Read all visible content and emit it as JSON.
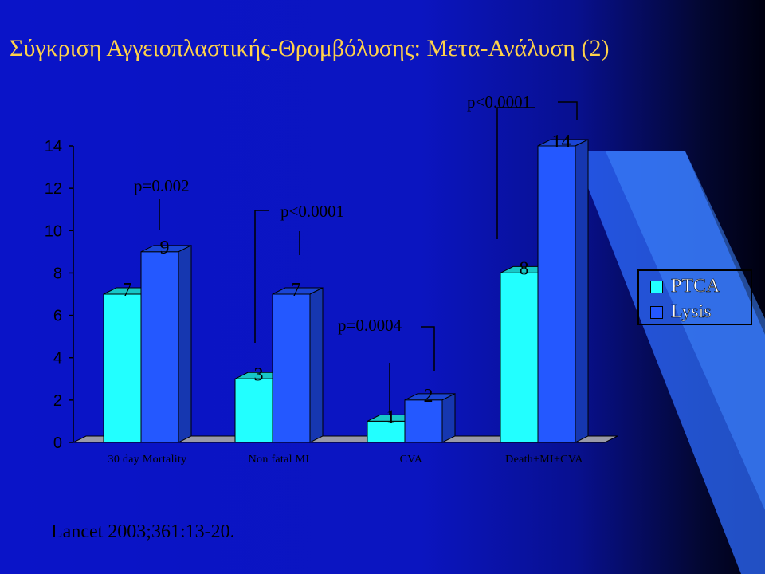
{
  "slide": {
    "title": "Σύγκριση Αγγειοπλαστικής-Θρομβόλυσης: Μετα-Ανάλυση (2)",
    "citation": "Lancet 2003;361:13-20."
  },
  "colors": {
    "ptca": "#22ffff",
    "lysis": "#2458ff",
    "title": "#ffd24a"
  },
  "chart_data": {
    "type": "bar",
    "title": "",
    "xlabel": "",
    "ylabel": "",
    "ylim": [
      0,
      14
    ],
    "yticks": [
      "0",
      "2",
      "4",
      "6",
      "8",
      "10",
      "12",
      "14"
    ],
    "categories": [
      "30 day Mortality",
      "Non fatal MI",
      "CVA",
      "Death+MI+CVA"
    ],
    "series": [
      {
        "name": "PTCA",
        "values": [
          7,
          3,
          1,
          8
        ],
        "labels": [
          "7",
          "3",
          "1",
          "8"
        ]
      },
      {
        "name": "Lysis",
        "values": [
          9,
          7,
          2,
          14
        ],
        "labels": [
          "9",
          "7",
          "2",
          "14"
        ]
      }
    ],
    "p_values": [
      "p=0.002",
      "p<0.0001",
      "p=0.0004",
      "p<0.0001"
    ],
    "legend_position": "right",
    "grid": false
  }
}
